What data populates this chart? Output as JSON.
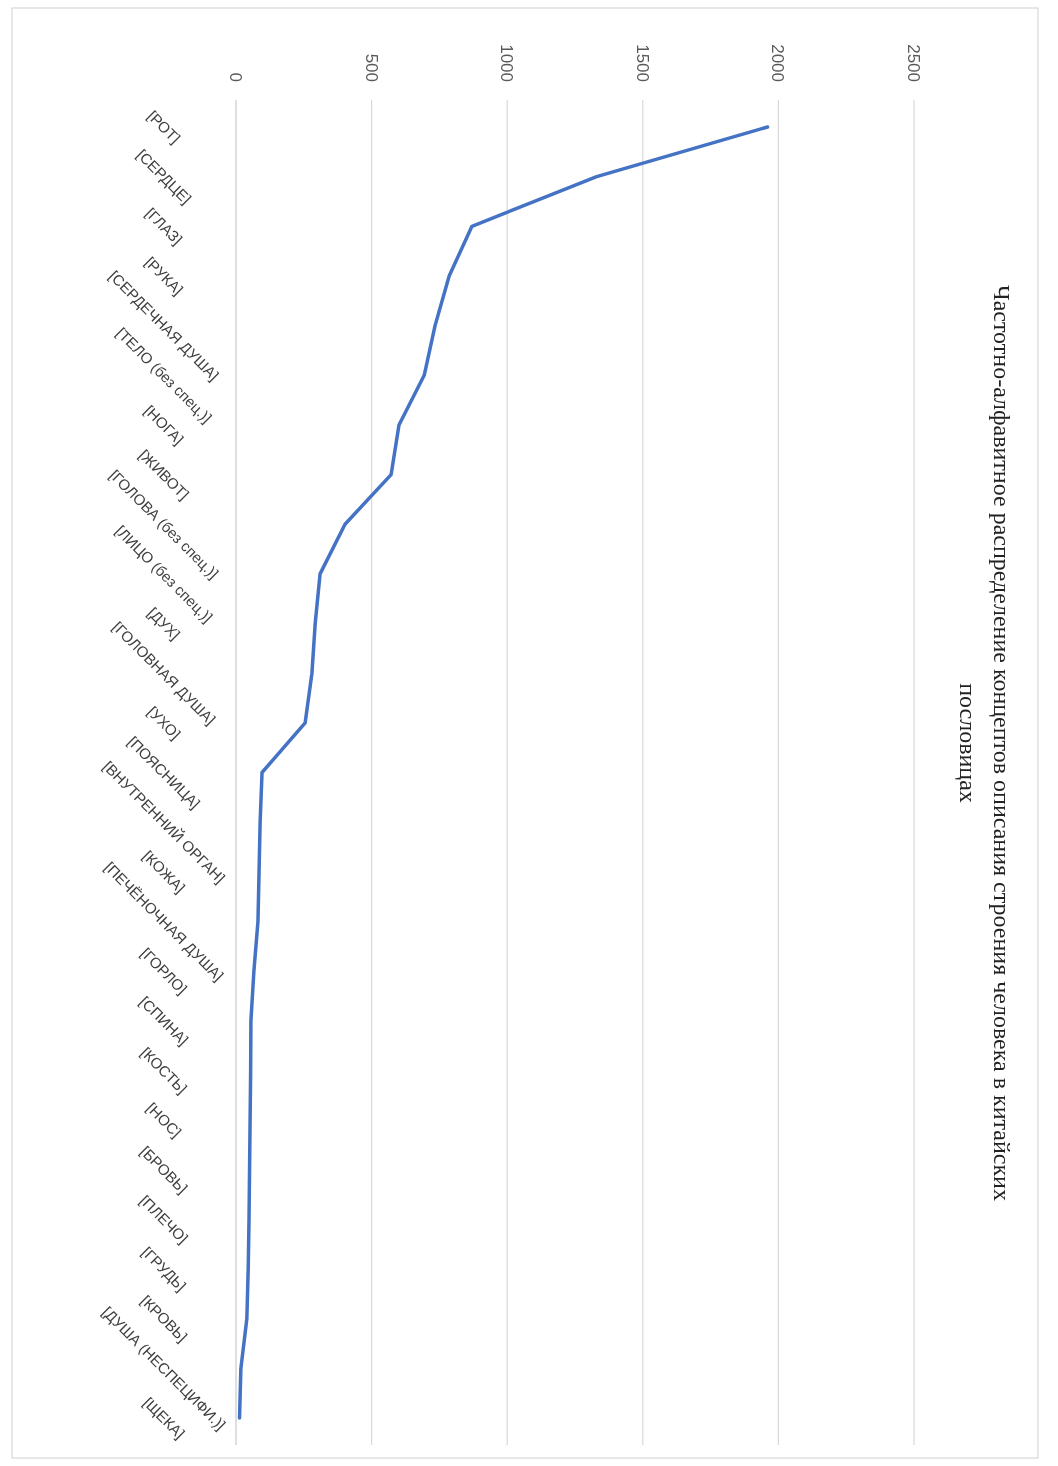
{
  "chart_data": {
    "type": "line",
    "title": "Частотно-алфавитное распределение концептов описания строения человека в китайских пословицах",
    "categories": [
      "[РОТ]",
      "[СЕРДЦЕ]",
      "[ГЛАЗ]",
      "[РУКА]",
      "[СЕРДЕЧНАЯ ДУША]",
      "[ТЕЛО (без спец.)]",
      "[НОГА]",
      "[ЖИВОТ]",
      "[ГОЛОВА (без спец.)]",
      "[ЛИЦО (без спец.)]",
      "[ДУХ]",
      "[ГОЛОВНАЯ ДУША]",
      "[УХО]",
      "[ПОЯСНИЦА]",
      "[ВНУТРЕННИЙ ОРГАН]",
      "[КОЖА]",
      "[ПЕЧЁНОЧНАЯ ДУША]",
      "[ГОРЛО]",
      "[СПИНА]",
      "[КОСТЬ]",
      "[НОС]",
      "[БРОВЬ]",
      "[ПЛЕЧО]",
      "[ГРУДЬ]",
      "[КРОВЬ]",
      "[ДУША (НЕСПЕЦИФИ.)]",
      "[ЩЕКА]"
    ],
    "series": [
      {
        "color": "#4472c4",
        "values": [
          1960,
          1330,
          870,
          786,
          734,
          694,
          601,
          572,
          402,
          310,
          292,
          280,
          255,
          96,
          89,
          85,
          81,
          66,
          55,
          54,
          52,
          50,
          48,
          45,
          40,
          18,
          13
        ]
      }
    ],
    "orientation": "horizontal",
    "xlim": [
      0,
      2500
    ],
    "xticks": [
      0,
      500,
      1000,
      1500,
      2000,
      2500
    ],
    "grid": "x",
    "marker": "none",
    "line_style": "solid"
  }
}
